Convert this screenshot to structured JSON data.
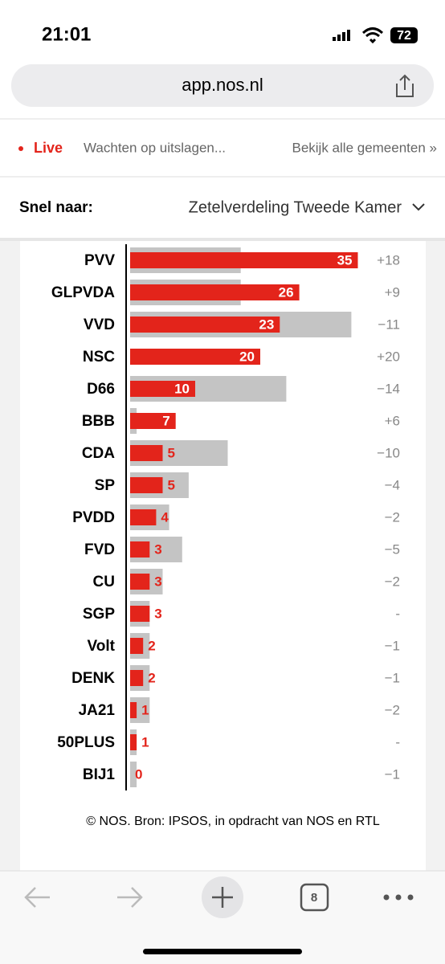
{
  "status": {
    "time": "21:01",
    "battery": "72"
  },
  "browser": {
    "url": "app.nos.nl",
    "tabs": "8"
  },
  "ticker": {
    "live": "Live",
    "text": "Wachten op uitslagen...",
    "link": "Bekijk alle gemeenten »"
  },
  "nav": {
    "label": "Snel naar:",
    "selected": "Zetelverdeling Tweede Kamer"
  },
  "chart_data": {
    "type": "bar",
    "categories": [
      "PVV",
      "GLPVDA",
      "VVD",
      "NSC",
      "D66",
      "BBB",
      "CDA",
      "SP",
      "PVDD",
      "FVD",
      "CU",
      "SGP",
      "Volt",
      "DENK",
      "JA21",
      "50PLUS",
      "BIJ1"
    ],
    "values": [
      35,
      26,
      23,
      20,
      10,
      7,
      5,
      5,
      4,
      3,
      3,
      3,
      2,
      2,
      1,
      1,
      0
    ],
    "color": "#e3241b",
    "previous": [
      17,
      17,
      34,
      0,
      24,
      1,
      15,
      9,
      6,
      8,
      5,
      3,
      3,
      3,
      3,
      1,
      1
    ],
    "previous_color": "#c4c4c4",
    "changes": {
      "values": [
        18,
        9,
        -11,
        20,
        -14,
        6,
        -10,
        -4,
        -2,
        -5,
        -2,
        0,
        -1,
        -1,
        -2,
        0,
        -1
      ],
      "value_labels": [
        "+18",
        "+9",
        "−11",
        "+20",
        "−14",
        "+6",
        "−10",
        "−4",
        "−2",
        "−5",
        "−2",
        "-",
        "−1",
        "−1",
        "−2",
        "-",
        "−1"
      ]
    },
    "source": "© NOS. Bron: IPSOS, in opdracht van NOS en RTL"
  }
}
